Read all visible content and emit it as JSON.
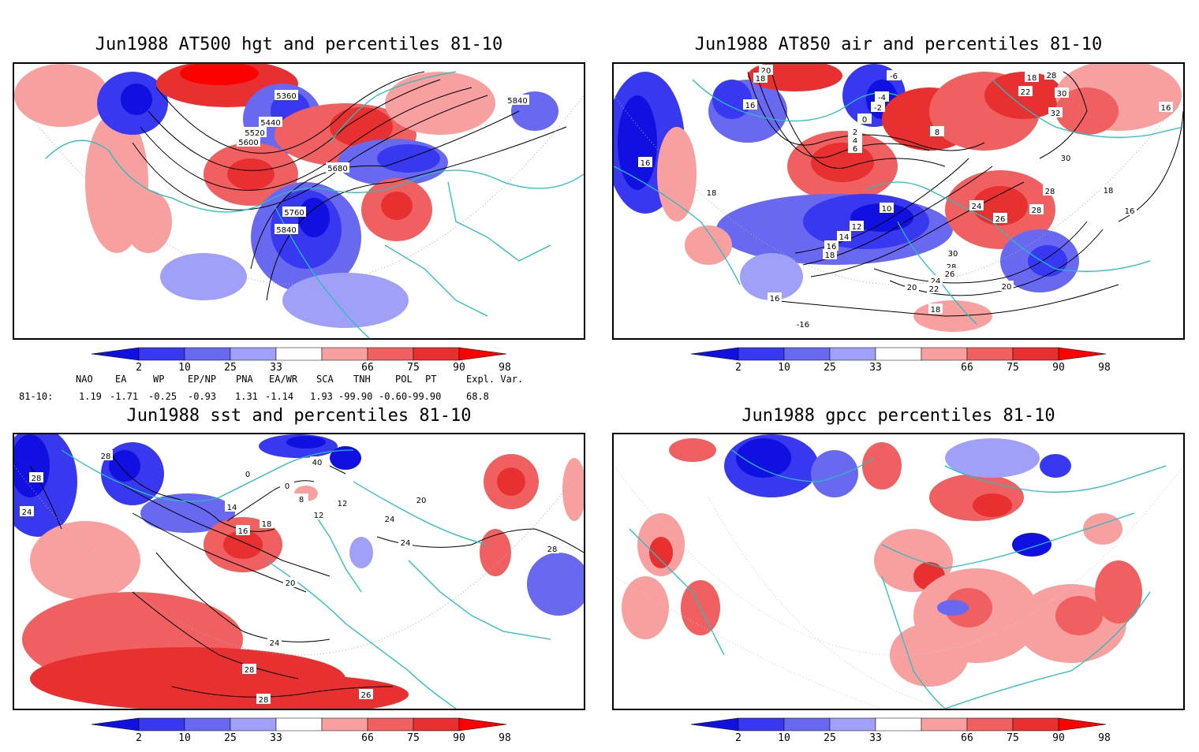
{
  "panels": [
    {
      "title": "Jun1988 AT500 hgt and percentiles 81-10",
      "contour_labels": [
        "5360",
        "5440",
        "5520",
        "5600",
        "5680",
        "5760",
        "5840",
        "5840"
      ]
    },
    {
      "title": "Jun1988 AT850 air and percentiles 81-10",
      "contour_labels": [
        "20",
        "18",
        "-6",
        "-4",
        "-2",
        "0",
        "16",
        "2",
        "4",
        "6",
        "8",
        "16",
        "18",
        "10",
        "12",
        "14",
        "16",
        "18",
        "20",
        "18",
        "28",
        "22",
        "30",
        "32",
        "30",
        "28",
        "18",
        "16",
        "24",
        "26",
        "28",
        "30",
        "28",
        "26",
        "24",
        "22",
        "20",
        "18",
        "16",
        "-16",
        "16"
      ]
    },
    {
      "title": "Jun1988 sst and percentiles 81-10",
      "contour_labels": [
        "28",
        "28",
        "24",
        "0",
        "0",
        "40",
        "8",
        "14",
        "16",
        "18",
        "12",
        "12",
        "20",
        "20",
        "24",
        "24",
        "28",
        "28",
        "26",
        "28",
        "24"
      ]
    },
    {
      "title": "Jun1988 gpcc percentiles 81-10",
      "contour_labels": []
    }
  ],
  "colorbar": {
    "labels": [
      "2",
      "10",
      "25",
      "33",
      "66",
      "75",
      "90",
      "98"
    ],
    "colors": [
      "#1010e0",
      "#3838f0",
      "#6868f0",
      "#a0a0f8",
      "#ffffff",
      "#f8a0a0",
      "#f06060",
      "#e83030",
      "#ff0000"
    ]
  },
  "indices": {
    "headers": [
      "NAO",
      "EA",
      "WP",
      "EP/NP",
      "PNA",
      "EA/WR",
      "SCA",
      "TNH",
      "POL",
      "PT",
      "Expl. Var."
    ],
    "row_label": "81-10:",
    "values": [
      "1.19",
      "-1.71",
      "-0.25",
      "-0.93",
      "1.31",
      "-1.14",
      "1.93",
      "-99.90",
      "-0.60",
      "-99.90",
      "68.8"
    ]
  }
}
